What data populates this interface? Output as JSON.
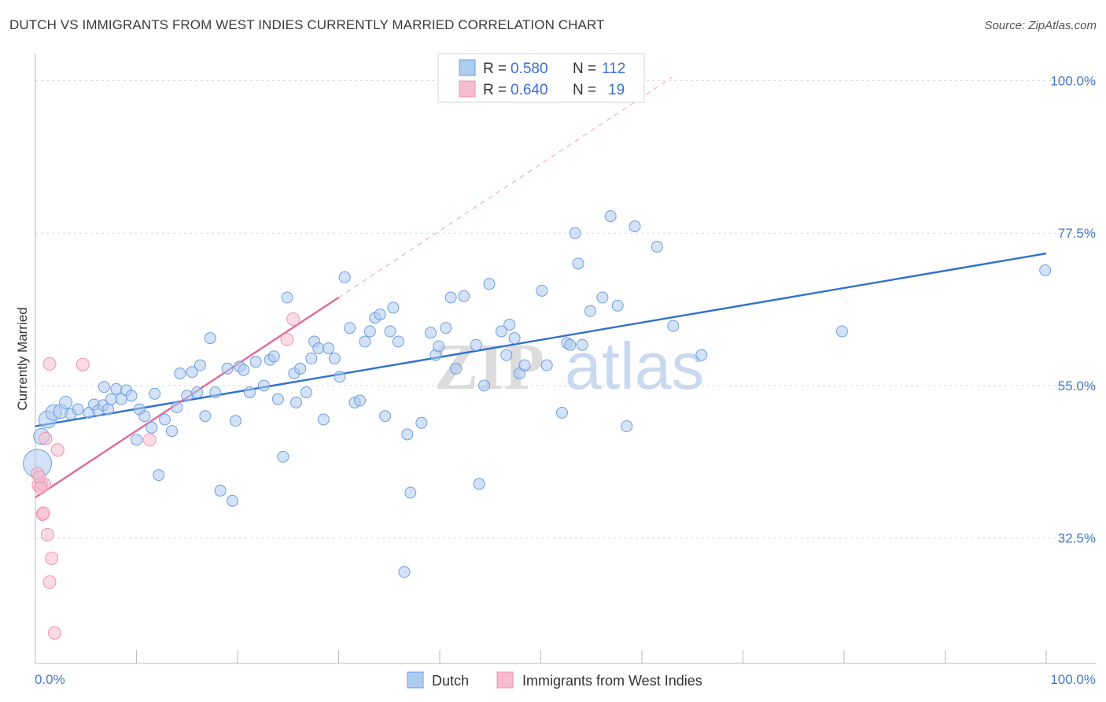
{
  "title": "DUTCH VS IMMIGRANTS FROM WEST INDIES CURRENTLY MARRIED CORRELATION CHART",
  "source": "Source: ZipAtlas.com",
  "watermark": {
    "zip": "ZIP",
    "atlas": "atlas"
  },
  "stats_legend": [
    {
      "r_label": "R = ",
      "r_value": "0.580",
      "n_label": "N = ",
      "n_value": "112",
      "color": "#aecbf0"
    },
    {
      "r_label": "R = ",
      "r_value": "0.640",
      "n_label": "N = ",
      "n_value": "19",
      "color": "#f6bccd"
    }
  ],
  "chart_data": {
    "type": "scatter",
    "title": "DUTCH VS IMMIGRANTS FROM WEST INDIES CURRENTLY MARRIED CORRELATION CHART",
    "xlabel": "",
    "ylabel": "Currently Married",
    "xlim": [
      0,
      100
    ],
    "ylim": [
      14,
      104
    ],
    "x_tick_labels": [
      "0.0%",
      "100.0%"
    ],
    "y_ticks": [
      32.5,
      55.0,
      77.5,
      100.0
    ],
    "y_tick_labels": [
      "32.5%",
      "55.0%",
      "77.5%",
      "100.0%"
    ],
    "grid": true,
    "series": [
      {
        "name": "Dutch",
        "color": "#aecbf0",
        "stroke": "#6f9fe0",
        "trend": {
          "x": [
            0,
            100
          ],
          "y": [
            49.0,
            74.5
          ],
          "color": "#2f6fd0"
        },
        "points": [
          [
            0.2,
            43.5,
            18
          ],
          [
            0.6,
            47.5,
            10
          ],
          [
            1.2,
            50.0,
            11
          ],
          [
            1.8,
            51.0,
            10
          ],
          [
            2.5,
            51.2,
            9
          ],
          [
            3.0,
            52.5,
            8
          ],
          [
            3.5,
            50.8,
            7
          ],
          [
            4.2,
            51.5,
            7
          ],
          [
            5.3,
            51.0,
            7
          ],
          [
            5.8,
            52.2,
            7
          ],
          [
            6.2,
            51.3,
            7
          ],
          [
            6.7,
            52.1,
            7
          ],
          [
            7.2,
            51.5,
            7
          ],
          [
            6.8,
            54.8,
            7
          ],
          [
            7.5,
            53.0,
            7
          ],
          [
            8.0,
            54.5,
            7
          ],
          [
            8.5,
            53.0,
            7
          ],
          [
            9.0,
            54.3,
            7
          ],
          [
            9.5,
            53.5,
            7
          ],
          [
            10.0,
            47.0,
            7
          ],
          [
            10.3,
            51.5,
            7
          ],
          [
            10.8,
            50.5,
            7
          ],
          [
            11.5,
            48.8,
            7
          ],
          [
            11.8,
            53.8,
            7
          ],
          [
            12.2,
            41.8,
            7
          ],
          [
            12.8,
            50.0,
            7
          ],
          [
            13.5,
            48.3,
            7
          ],
          [
            14.0,
            51.8,
            7
          ],
          [
            14.3,
            56.8,
            7
          ],
          [
            15.0,
            53.5,
            7
          ],
          [
            15.5,
            57.0,
            7
          ],
          [
            16.0,
            54.0,
            7
          ],
          [
            16.3,
            58.0,
            7
          ],
          [
            16.8,
            50.5,
            7
          ],
          [
            17.3,
            62.0,
            7
          ],
          [
            17.8,
            54.0,
            7
          ],
          [
            18.3,
            39.5,
            7
          ],
          [
            19.0,
            57.5,
            7
          ],
          [
            19.5,
            38.0,
            7
          ],
          [
            19.8,
            49.8,
            7
          ],
          [
            20.2,
            57.8,
            7
          ],
          [
            20.6,
            57.3,
            7
          ],
          [
            21.2,
            54.0,
            7
          ],
          [
            21.8,
            58.5,
            7
          ],
          [
            22.6,
            55.0,
            7
          ],
          [
            23.2,
            58.8,
            7
          ],
          [
            23.6,
            59.3,
            7
          ],
          [
            24.0,
            53.0,
            7
          ],
          [
            24.5,
            44.5,
            7
          ],
          [
            24.9,
            68.0,
            7
          ],
          [
            25.6,
            56.8,
            7
          ],
          [
            25.8,
            52.5,
            7
          ],
          [
            26.2,
            57.5,
            7
          ],
          [
            26.8,
            54.0,
            7
          ],
          [
            27.3,
            59.0,
            7
          ],
          [
            27.6,
            61.5,
            7
          ],
          [
            28.0,
            60.5,
            7
          ],
          [
            28.5,
            50.0,
            7
          ],
          [
            29.0,
            60.5,
            7
          ],
          [
            29.6,
            59.0,
            7
          ],
          [
            30.1,
            56.3,
            7
          ],
          [
            30.6,
            71.0,
            7
          ],
          [
            31.1,
            63.5,
            7
          ],
          [
            31.6,
            52.5,
            7
          ],
          [
            32.1,
            52.8,
            7
          ],
          [
            32.6,
            61.5,
            7
          ],
          [
            33.1,
            63.0,
            7
          ],
          [
            33.6,
            65.0,
            7
          ],
          [
            34.1,
            65.5,
            7
          ],
          [
            34.6,
            50.5,
            7
          ],
          [
            35.1,
            63.0,
            7
          ],
          [
            35.4,
            66.5,
            7
          ],
          [
            35.9,
            61.5,
            7
          ],
          [
            36.8,
            47.8,
            7
          ],
          [
            37.1,
            39.2,
            7
          ],
          [
            36.5,
            27.5,
            7
          ],
          [
            39.1,
            62.8,
            7
          ],
          [
            39.6,
            59.5,
            7
          ],
          [
            39.9,
            60.8,
            7
          ],
          [
            38.2,
            49.5,
            7
          ],
          [
            40.6,
            63.5,
            7
          ],
          [
            41.1,
            68.0,
            7
          ],
          [
            41.6,
            57.5,
            7
          ],
          [
            42.4,
            68.2,
            7
          ],
          [
            43.6,
            61.0,
            7
          ],
          [
            43.9,
            40.5,
            7
          ],
          [
            44.4,
            55.0,
            7
          ],
          [
            44.9,
            70.0,
            7
          ],
          [
            46.1,
            63.0,
            7
          ],
          [
            46.6,
            59.5,
            7
          ],
          [
            46.9,
            64.0,
            7
          ],
          [
            47.4,
            62.0,
            7
          ],
          [
            47.9,
            56.8,
            7
          ],
          [
            48.4,
            58.0,
            7
          ],
          [
            50.1,
            69.0,
            7
          ],
          [
            50.6,
            58.0,
            7
          ],
          [
            52.1,
            51.0,
            7
          ],
          [
            52.6,
            61.3,
            7
          ],
          [
            52.9,
            61.0,
            7
          ],
          [
            53.4,
            77.5,
            7
          ],
          [
            53.7,
            73.0,
            7
          ],
          [
            54.1,
            61.0,
            7
          ],
          [
            54.9,
            66.0,
            7
          ],
          [
            56.1,
            68.0,
            7
          ],
          [
            56.9,
            80.0,
            7
          ],
          [
            57.6,
            66.8,
            7
          ],
          [
            58.5,
            49.0,
            7
          ],
          [
            59.3,
            78.5,
            7
          ],
          [
            61.5,
            75.5,
            7
          ],
          [
            63.1,
            63.8,
            7
          ],
          [
            65.9,
            59.5,
            7
          ],
          [
            79.8,
            63.0,
            7
          ],
          [
            99.9,
            72.0,
            7
          ]
        ]
      },
      {
        "name": "Immigrants from West Indies",
        "color": "#f6bccd",
        "stroke": "#ec95ae",
        "trend": {
          "x": [
            0,
            30
          ],
          "y": [
            38.5,
            68.0
          ],
          "color": "#e4679a"
        },
        "trend_extension": {
          "x": [
            30,
            63
          ],
          "y": [
            68.0,
            100.5
          ]
        },
        "points": [
          [
            0.2,
            42.0,
            8
          ],
          [
            0.3,
            40.3,
            8
          ],
          [
            0.6,
            40.5,
            8
          ],
          [
            0.9,
            40.4,
            8
          ],
          [
            0.4,
            41.5,
            8
          ],
          [
            0.5,
            39.9,
            8
          ],
          [
            0.7,
            36.0,
            8
          ],
          [
            0.8,
            36.2,
            8
          ],
          [
            1.0,
            47.2,
            8
          ],
          [
            1.2,
            33.0,
            8
          ],
          [
            1.4,
            58.2,
            8
          ],
          [
            1.6,
            29.5,
            8
          ],
          [
            1.4,
            26.0,
            8
          ],
          [
            1.9,
            18.5,
            8
          ],
          [
            2.2,
            45.5,
            8
          ],
          [
            4.7,
            58.1,
            8
          ],
          [
            11.3,
            47.0,
            8
          ],
          [
            24.9,
            61.8,
            8
          ],
          [
            25.5,
            64.8,
            8
          ]
        ]
      }
    ]
  },
  "bottom_legend": [
    {
      "label": "Dutch",
      "color": "#aecbf0"
    },
    {
      "label": "Immigrants from West Indies",
      "color": "#f6bccd"
    }
  ]
}
